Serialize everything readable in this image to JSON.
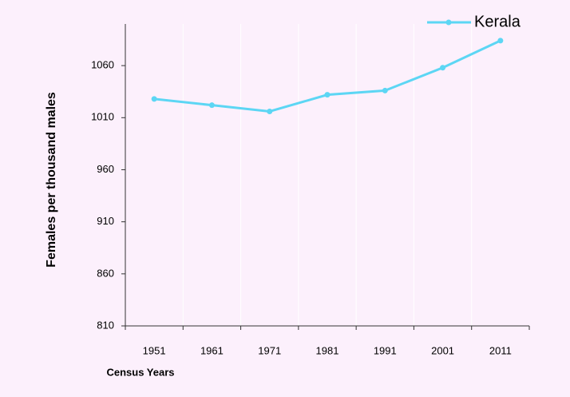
{
  "chart_data": {
    "type": "line",
    "x_label": "Census Years",
    "y_label": "Females per thousand males",
    "categories": [
      "1951",
      "1961",
      "1971",
      "1981",
      "1991",
      "2001",
      "2011"
    ],
    "series": [
      {
        "name": "Kerala",
        "color": "#5cd6f4",
        "values": [
          1028,
          1022,
          1016,
          1032,
          1036,
          1058,
          1084
        ]
      }
    ],
    "ylim": [
      810,
      1100
    ],
    "yticks": [
      810,
      860,
      910,
      960,
      1010,
      1060
    ],
    "legend": "top-right",
    "grid": true
  }
}
